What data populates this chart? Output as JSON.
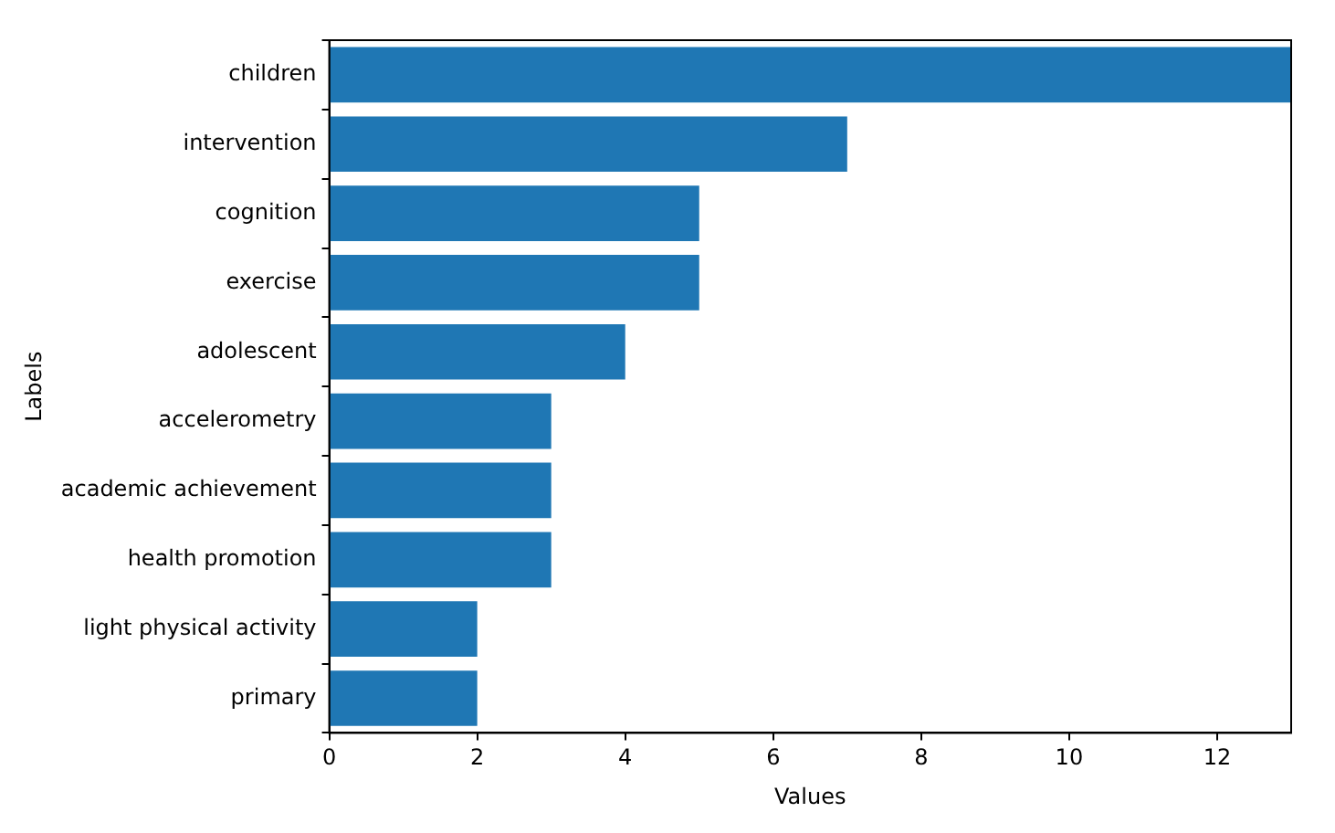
{
  "chart_data": {
    "type": "bar",
    "orientation": "horizontal",
    "xlabel": "Values",
    "ylabel": "Labels",
    "categories": [
      "children",
      "intervention",
      "cognition",
      "exercise",
      "adolescent",
      "accelerometry",
      "academic achievement",
      "health promotion",
      "light physical activity",
      "primary"
    ],
    "values": [
      13,
      7,
      5,
      5,
      4,
      3,
      3,
      3,
      2,
      2
    ],
    "color": "#1f77b4",
    "xlim": [
      0,
      13
    ],
    "xticks": [
      0,
      2,
      4,
      6,
      8,
      10,
      12
    ],
    "grid": false,
    "legend": false
  }
}
